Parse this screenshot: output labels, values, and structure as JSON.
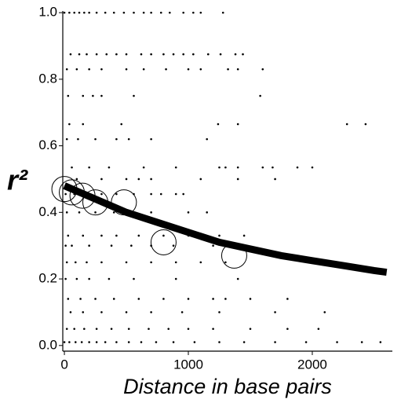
{
  "chart_data": {
    "type": "scatter",
    "xlabel": "Distance in base pairs",
    "ylabel": "r²",
    "xlim": [
      -13,
      2646
    ],
    "ylim": [
      -0.017,
      1.005
    ],
    "xticks": [
      0,
      1000,
      2000
    ],
    "yticks": [
      {
        "value": 0,
        "label": "0.0"
      },
      0.2,
      0.4,
      0.6,
      0.8,
      {
        "value": 1,
        "label": "1.0"
      }
    ],
    "series": [
      {
        "style": "dot",
        "color": "#000000",
        "x": [
          0,
          40,
          80,
          120,
          160,
          200,
          260,
          330,
          400,
          480,
          560,
          640,
          700,
          780,
          850,
          960,
          1040,
          1100,
          1280,
          50,
          120,
          180,
          260,
          340,
          420,
          500,
          620,
          700,
          800,
          880,
          960,
          1040,
          1160,
          1260,
          1380,
          1440,
          20,
          100,
          200,
          300,
          500,
          640,
          820,
          1000,
          1100,
          1320,
          1400,
          1600,
          30,
          150,
          230,
          300,
          560,
          1580,
          40,
          150,
          460,
          1240,
          1400,
          2280,
          2430,
          20,
          110,
          250,
          420,
          520,
          700,
          1150,
          60,
          200,
          360,
          640,
          900,
          1250,
          1300,
          1400,
          1600,
          1680,
          1880,
          2000,
          100,
          300,
          500,
          600,
          700,
          1100,
          1400,
          1700,
          10,
          80,
          160,
          300,
          420,
          560,
          700,
          780,
          900,
          960,
          20,
          120,
          250,
          400,
          560,
          700,
          1000,
          1150,
          30,
          150,
          300,
          420,
          600,
          800,
          1000,
          1250,
          1450,
          10,
          60,
          200,
          380,
          540,
          700,
          880,
          1200,
          20,
          90,
          180,
          300,
          500,
          700,
          900,
          1100,
          1300,
          10,
          100,
          200,
          360,
          560,
          900,
          1400,
          30,
          130,
          250,
          400,
          600,
          800,
          1000,
          1200,
          1300,
          1500,
          1800,
          50,
          150,
          300,
          500,
          700,
          950,
          1250,
          1700,
          2100,
          20,
          80,
          160,
          260,
          380,
          520,
          680,
          840,
          1000,
          1200,
          1500,
          1800,
          2050,
          0,
          40,
          90,
          140,
          200,
          260,
          330,
          420,
          520,
          620,
          740,
          880,
          1050,
          1250,
          1450,
          1700,
          1950,
          2200,
          2400,
          2550
        ],
        "values": [
          1,
          1,
          1,
          1,
          1,
          1,
          1,
          1,
          1,
          1,
          1,
          1,
          1,
          1,
          1,
          1,
          1,
          1,
          1,
          0.875,
          0.875,
          0.875,
          0.875,
          0.875,
          0.875,
          0.875,
          0.875,
          0.875,
          0.875,
          0.875,
          0.875,
          0.875,
          0.875,
          0.875,
          0.875,
          0.875,
          0.83,
          0.83,
          0.83,
          0.83,
          0.83,
          0.83,
          0.83,
          0.83,
          0.83,
          0.83,
          0.83,
          0.83,
          0.75,
          0.75,
          0.75,
          0.75,
          0.75,
          0.75,
          0.665,
          0.665,
          0.665,
          0.665,
          0.665,
          0.665,
          0.665,
          0.62,
          0.62,
          0.62,
          0.62,
          0.62,
          0.62,
          0.62,
          0.535,
          0.535,
          0.535,
          0.535,
          0.535,
          0.535,
          0.535,
          0.535,
          0.535,
          0.535,
          0.535,
          0.535,
          0.5,
          0.5,
          0.5,
          0.5,
          0.5,
          0.5,
          0.5,
          0.5,
          0.455,
          0.455,
          0.455,
          0.455,
          0.455,
          0.455,
          0.455,
          0.455,
          0.455,
          0.455,
          0.4,
          0.4,
          0.4,
          0.4,
          0.4,
          0.4,
          0.4,
          0.4,
          0.33,
          0.33,
          0.33,
          0.33,
          0.33,
          0.33,
          0.33,
          0.33,
          0.33,
          0.3,
          0.3,
          0.3,
          0.3,
          0.3,
          0.3,
          0.3,
          0.3,
          0.25,
          0.25,
          0.25,
          0.25,
          0.25,
          0.25,
          0.25,
          0.25,
          0.25,
          0.2,
          0.2,
          0.2,
          0.2,
          0.2,
          0.2,
          0.2,
          0.14,
          0.14,
          0.14,
          0.14,
          0.14,
          0.14,
          0.14,
          0.14,
          0.14,
          0.14,
          0.14,
          0.1,
          0.1,
          0.1,
          0.1,
          0.1,
          0.1,
          0.1,
          0.1,
          0.1,
          0.05,
          0.05,
          0.05,
          0.05,
          0.05,
          0.05,
          0.05,
          0.05,
          0.05,
          0.05,
          0.05,
          0.05,
          0.05,
          0.01,
          0.01,
          0.01,
          0.01,
          0.01,
          0.01,
          0.01,
          0.01,
          0.01,
          0.01,
          0.01,
          0.01,
          0.01,
          0.01,
          0.01,
          0.01,
          0.01,
          0.01,
          0.01,
          0.01
        ]
      },
      {
        "style": "circle",
        "color": "#000000",
        "x": [
          0,
          60,
          146,
          250,
          480,
          800,
          1370
        ],
        "values": [
          0.47,
          0.46,
          0.45,
          0.43,
          0.43,
          0.31,
          0.27
        ]
      },
      {
        "style": "curve",
        "color": "#000000",
        "x": [
          0,
          250,
          500,
          750,
          1000,
          1250,
          1500,
          1750,
          2000,
          2250,
          2500,
          2600
        ],
        "values": [
          0.48,
          0.44,
          0.4,
          0.37,
          0.34,
          0.31,
          0.29,
          0.27,
          0.255,
          0.24,
          0.225,
          0.22
        ]
      }
    ]
  }
}
